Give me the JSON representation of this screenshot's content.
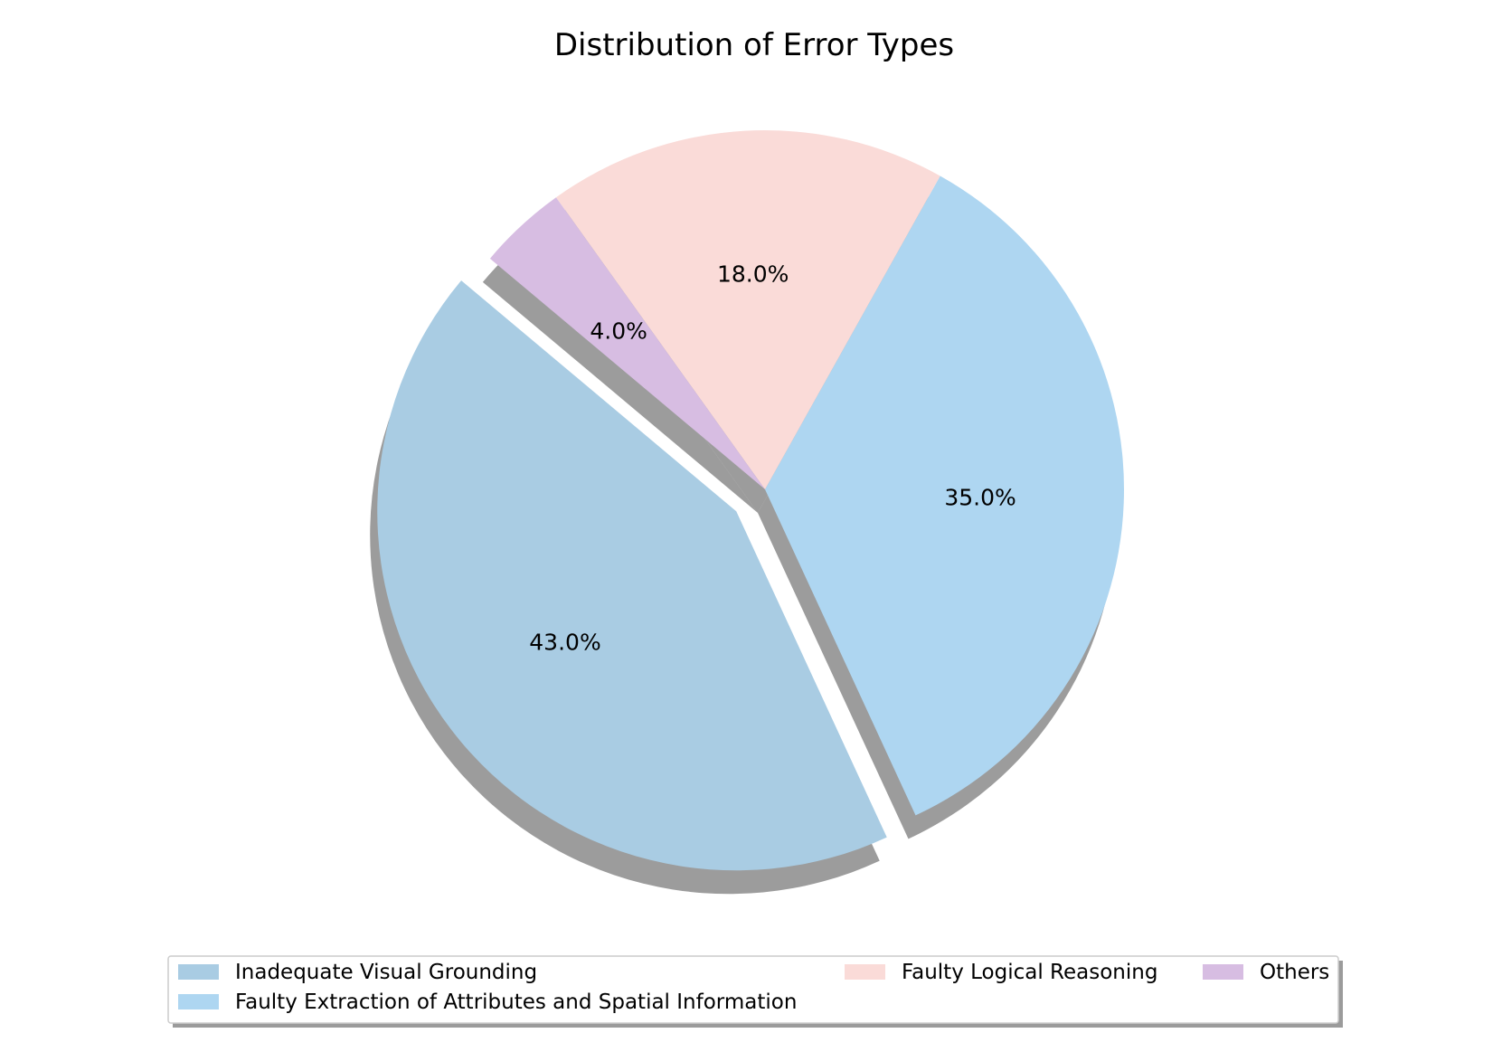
{
  "chart_data": {
    "type": "pie",
    "title": "Distribution of Error Types",
    "categories": [
      "Inadequate Visual Grounding",
      "Faulty Extraction of Attributes and Spatial Information",
      "Faulty Logical Reasoning",
      "Others"
    ],
    "values": [
      43.0,
      35.0,
      18.0,
      4.0
    ],
    "labels": [
      "43.0%",
      "35.0%",
      "18.0%",
      "4.0%"
    ],
    "colors": [
      "#a9cce3",
      "#aed6f1",
      "#fadbd8",
      "#d7bde2"
    ],
    "exploded": [
      "Inadequate Visual Grounding"
    ],
    "shadow": true,
    "start_angle_deg": 140,
    "legend_placement": "bottom",
    "legend_columns": 3
  }
}
